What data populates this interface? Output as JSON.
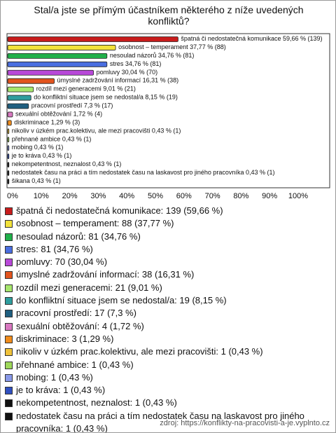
{
  "chart_data": {
    "type": "bar",
    "orientation": "horizontal",
    "title": "Stal/a jste se přímým účastníkem některého z níže uvedených konfliktů?",
    "categories": [
      "špatná či nedostatečná komunikace",
      "osobnost – temperament",
      "nesoulad názorů",
      "stres",
      "pomluvy",
      "úmyslné zadržování informací",
      "rozdíl mezi generacemi",
      "do konfliktní situace jsem se nedostal/a",
      "pracovní prostředí",
      "sexuální obtěžování",
      "diskriminace",
      "nikoliv v úzkém prac.kolektivu, ale mezi pracovišti",
      "přehnané ambice",
      "mobing",
      "je to kráva",
      "nekompetentnost, neznalost",
      "nedostatek času na práci a tím nedostatek času na laskavost pro jiného pracovníka",
      "šikana"
    ],
    "values": [
      59.66,
      37.77,
      34.76,
      34.76,
      30.04,
      16.31,
      9.01,
      8.15,
      7.3,
      1.72,
      1.29,
      0.43,
      0.43,
      0.43,
      0.43,
      0.43,
      0.43,
      0.43
    ],
    "value_labels": [
      "59,66 % (139)",
      "37,77 % (88)",
      "34,76 % (81)",
      "34,76 % (81)",
      "30,04 % (70)",
      "16,31 % (38)",
      "9,01 % (21)",
      "8,15 % (19)",
      "7,3 % (17)",
      "1,72 % (4)",
      "1,29 % (3)",
      "0,43 % (1)",
      "0,43 % (1)",
      "0,43 % (1)",
      "0,43 % (1)",
      "0,43 % (1)",
      "0,43 % (1)",
      "0,43 % (1)"
    ],
    "colors": [
      "#c81c1c",
      "#f2e23a",
      "#20b04a",
      "#4a6ee0",
      "#b848d8",
      "#e2541e",
      "#a6e66c",
      "#2f9e9e",
      "#1f5f80",
      "#d878c0",
      "#f08c1c",
      "#f0c23a",
      "#9ed85a",
      "#8898e8",
      "#3050c0",
      "#111111",
      "#111111",
      "#111111"
    ],
    "legend_labels": [
      "špatná či nedostatečná komunikace: 139 (59,66 %)",
      "osobnost – temperament: 88 (37,77 %)",
      "nesoulad názorů: 81 (34,76 %)",
      "stres: 81 (34,76 %)",
      "pomluvy: 70 (30,04 %)",
      "úmyslné zadržování informací: 38 (16,31 %)",
      "rozdíl mezi generacemi: 21 (9,01 %)",
      "do konfliktní situace jsem se nedostal/a: 19 (8,15 %)",
      "pracovní prostředí: 17 (7,3 %)",
      "sexuální obtěžování: 4 (1,72 %)",
      "diskriminace: 3 (1,29 %)",
      "nikoliv v úzkém prac.kolektivu, ale mezi pracovišti: 1 (0,43 %)",
      "přehnané ambice: 1 (0,43 %)",
      "mobing: 1 (0,43 %)",
      "je to kráva: 1 (0,43 %)",
      "nekompetentnost, neznalost: 1 (0,43 %)",
      "nedostatek času na práci a tím nedostatek času na laskavost pro jiného pracovníka: 1 (0,43 %)",
      "šikana: 1 (0,43 %)"
    ],
    "xlim": [
      0,
      112.5
    ],
    "xticks": [
      {
        "value": 0,
        "label": "0%"
      },
      {
        "value": 10,
        "label": "10%"
      },
      {
        "value": 20,
        "label": "20%"
      },
      {
        "value": 30,
        "label": "30%"
      },
      {
        "value": 40,
        "label": "40%"
      },
      {
        "value": 50,
        "label": "50%"
      },
      {
        "value": 60,
        "label": "60%"
      },
      {
        "value": 70,
        "label": "70%"
      },
      {
        "value": 80,
        "label": "80%"
      },
      {
        "value": 90,
        "label": "90%"
      },
      {
        "value": 100,
        "label": "100%"
      }
    ],
    "source": "zdroj: https://konflikty-na-pracovisti-a-je.vyplnto.cz"
  }
}
